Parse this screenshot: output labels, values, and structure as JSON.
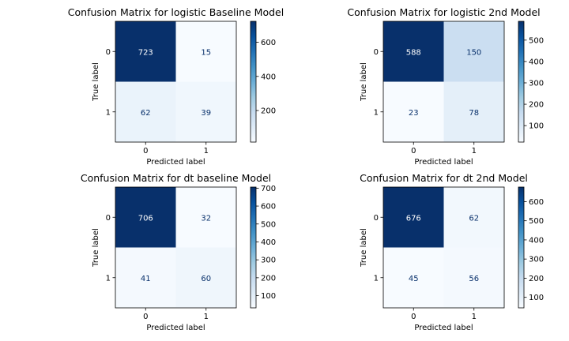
{
  "chart_data": [
    {
      "type": "heatmap",
      "title": "Confusion Matrix for logistic Baseline Model",
      "xlabel": "Predicted label",
      "ylabel": "True label",
      "x_ticks": [
        "0",
        "1"
      ],
      "y_ticks": [
        "0",
        "1"
      ],
      "values": [
        [
          723,
          15
        ],
        [
          62,
          39
        ]
      ],
      "colormap": "Blues",
      "colorbar_ticks": [
        "200",
        "400",
        "600"
      ],
      "colorbar_tick_values": [
        200,
        400,
        600
      ]
    },
    {
      "type": "heatmap",
      "title": "Confusion Matrix for logistic 2nd Model",
      "xlabel": "Predicted label",
      "ylabel": "True label",
      "x_ticks": [
        "0",
        "1"
      ],
      "y_ticks": [
        "0",
        "1"
      ],
      "values": [
        [
          588,
          150
        ],
        [
          23,
          78
        ]
      ],
      "colormap": "Blues",
      "colorbar_ticks": [
        "100",
        "200",
        "300",
        "400",
        "500"
      ],
      "colorbar_tick_values": [
        100,
        200,
        300,
        400,
        500
      ]
    },
    {
      "type": "heatmap",
      "title": "Confusion Matrix for dt baseline Model",
      "xlabel": "Predicted label",
      "ylabel": "True label",
      "x_ticks": [
        "0",
        "1"
      ],
      "y_ticks": [
        "0",
        "1"
      ],
      "values": [
        [
          706,
          32
        ],
        [
          41,
          60
        ]
      ],
      "colormap": "Blues",
      "colorbar_ticks": [
        "100",
        "200",
        "300",
        "400",
        "500",
        "600",
        "700"
      ],
      "colorbar_tick_values": [
        100,
        200,
        300,
        400,
        500,
        600,
        700
      ]
    },
    {
      "type": "heatmap",
      "title": "Confusion Matrix for dt 2nd Model",
      "xlabel": "Predicted label",
      "ylabel": "True label",
      "x_ticks": [
        "0",
        "1"
      ],
      "y_ticks": [
        "0",
        "1"
      ],
      "values": [
        [
          676,
          62
        ],
        [
          45,
          56
        ]
      ],
      "colormap": "Blues",
      "colorbar_ticks": [
        "100",
        "200",
        "300",
        "400",
        "500",
        "600"
      ],
      "colorbar_tick_values": [
        100,
        200,
        300,
        400,
        500,
        600
      ]
    }
  ]
}
